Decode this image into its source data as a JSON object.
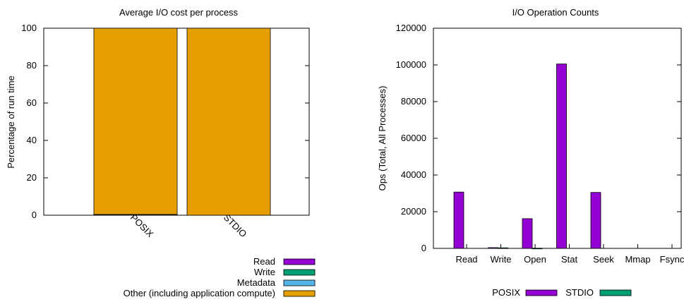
{
  "chart_data": [
    {
      "type": "bar",
      "stacked": true,
      "title": "Average I/O cost per process",
      "xlabel": "",
      "ylabel": "Percentage of run time",
      "ylim": [
        0,
        100
      ],
      "yticks": [
        0,
        20,
        40,
        60,
        80,
        100
      ],
      "categories": [
        "POSIX",
        "STDIO"
      ],
      "series": [
        {
          "name": "Read",
          "color": "#9400d3",
          "values": [
            0,
            0
          ]
        },
        {
          "name": "Write",
          "color": "#009e73",
          "values": [
            0.3,
            0
          ]
        },
        {
          "name": "Metadata",
          "color": "#56b4e9",
          "values": [
            0.1,
            0
          ]
        },
        {
          "name": "Other (including application compute)",
          "color": "#e69f00",
          "values": [
            99.6,
            100
          ]
        }
      ],
      "grid": false,
      "legend": "bottom-right"
    },
    {
      "type": "bar",
      "title": "I/O Operation Counts",
      "xlabel": "",
      "ylabel": "Ops (Total, All Processes)",
      "ylim": [
        0,
        120000
      ],
      "yticks": [
        0,
        20000,
        40000,
        60000,
        80000,
        100000,
        120000
      ],
      "categories": [
        "Read",
        "Write",
        "Open",
        "Stat",
        "Seek",
        "Mmap",
        "Fsync"
      ],
      "series": [
        {
          "name": "POSIX",
          "color": "#9400d3",
          "values": [
            30700,
            400,
            16200,
            100500,
            30500,
            0,
            0
          ]
        },
        {
          "name": "STDIO",
          "color": "#009e73",
          "values": [
            0,
            300,
            100,
            0,
            0,
            0,
            0
          ]
        }
      ],
      "grid": false,
      "legend": "bottom"
    }
  ]
}
